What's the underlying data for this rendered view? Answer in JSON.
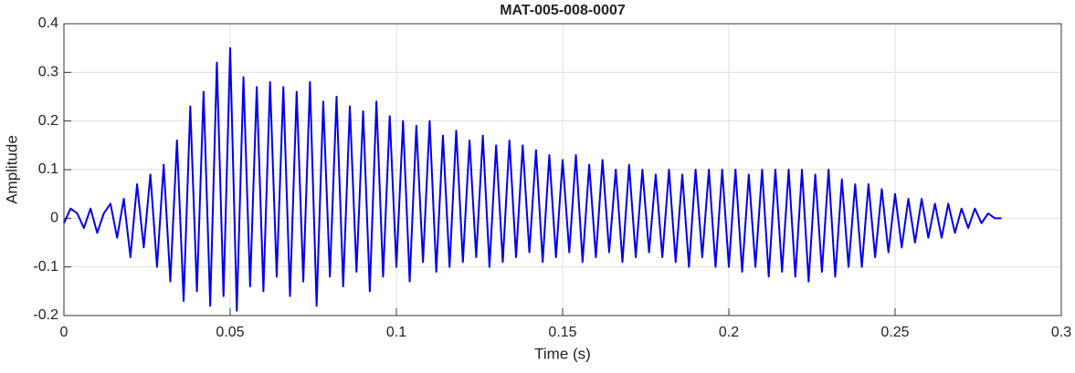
{
  "chart_data": {
    "type": "line",
    "title": "MAT-005-008-0007",
    "xlabel": "Time (s)",
    "ylabel": "Amplitude",
    "x": [
      0,
      0.002,
      0.004,
      0.006,
      0.008,
      0.01,
      0.012,
      0.014,
      0.016,
      0.018,
      0.02,
      0.022,
      0.024,
      0.026,
      0.028,
      0.03,
      0.032,
      0.034,
      0.036,
      0.038,
      0.04,
      0.042,
      0.044,
      0.046,
      0.048,
      0.05,
      0.052,
      0.054,
      0.056,
      0.058,
      0.06,
      0.062,
      0.064,
      0.066,
      0.068,
      0.07,
      0.072,
      0.074,
      0.076,
      0.078,
      0.08,
      0.082,
      0.084,
      0.086,
      0.088,
      0.09,
      0.092,
      0.094,
      0.096,
      0.098,
      0.1,
      0.102,
      0.104,
      0.106,
      0.108,
      0.11,
      0.112,
      0.114,
      0.116,
      0.118,
      0.12,
      0.122,
      0.124,
      0.126,
      0.128,
      0.13,
      0.132,
      0.134,
      0.136,
      0.138,
      0.14,
      0.142,
      0.144,
      0.146,
      0.148,
      0.15,
      0.152,
      0.154,
      0.156,
      0.158,
      0.16,
      0.162,
      0.164,
      0.166,
      0.168,
      0.17,
      0.172,
      0.174,
      0.176,
      0.178,
      0.18,
      0.182,
      0.184,
      0.186,
      0.188,
      0.19,
      0.192,
      0.194,
      0.196,
      0.198,
      0.2,
      0.202,
      0.204,
      0.206,
      0.208,
      0.21,
      0.212,
      0.214,
      0.216,
      0.218,
      0.22,
      0.222,
      0.224,
      0.226,
      0.228,
      0.23,
      0.232,
      0.234,
      0.236,
      0.238,
      0.24,
      0.242,
      0.244,
      0.246,
      0.248,
      0.25,
      0.252,
      0.254,
      0.256,
      0.258,
      0.26,
      0.262,
      0.264,
      0.266,
      0.268,
      0.27,
      0.272,
      0.274,
      0.276,
      0.278,
      0.28,
      0.282
    ],
    "series": [
      {
        "name": "Amplitude",
        "color": "#0000ee",
        "values": [
          -0.01,
          0.02,
          0.01,
          -0.02,
          0.02,
          -0.03,
          0.01,
          0.03,
          -0.04,
          0.04,
          -0.08,
          0.07,
          -0.06,
          0.09,
          -0.1,
          0.11,
          -0.13,
          0.16,
          -0.17,
          0.23,
          -0.15,
          0.26,
          -0.18,
          0.32,
          -0.16,
          0.35,
          -0.19,
          0.29,
          -0.14,
          0.27,
          -0.15,
          0.28,
          -0.12,
          0.27,
          -0.16,
          0.26,
          -0.13,
          0.28,
          -0.18,
          0.24,
          -0.12,
          0.25,
          -0.14,
          0.23,
          -0.11,
          0.22,
          -0.15,
          0.24,
          -0.12,
          0.21,
          -0.1,
          0.2,
          -0.13,
          0.19,
          -0.09,
          0.2,
          -0.11,
          0.17,
          -0.1,
          0.18,
          -0.09,
          0.16,
          -0.08,
          0.17,
          -0.1,
          0.15,
          -0.09,
          0.16,
          -0.08,
          0.15,
          -0.07,
          0.14,
          -0.09,
          0.13,
          -0.08,
          0.12,
          -0.07,
          0.13,
          -0.09,
          0.11,
          -0.08,
          0.12,
          -0.07,
          0.1,
          -0.09,
          0.11,
          -0.08,
          0.1,
          -0.07,
          0.09,
          -0.08,
          0.1,
          -0.09,
          0.09,
          -0.1,
          0.1,
          -0.08,
          0.1,
          -0.1,
          0.1,
          -0.1,
          0.1,
          -0.11,
          0.09,
          -0.1,
          0.1,
          -0.12,
          0.1,
          -0.11,
          0.1,
          -0.12,
          0.1,
          -0.13,
          0.09,
          -0.11,
          0.1,
          -0.12,
          0.08,
          -0.1,
          0.07,
          -0.1,
          0.07,
          -0.08,
          0.06,
          -0.07,
          0.05,
          -0.06,
          0.04,
          -0.05,
          0.04,
          -0.04,
          0.03,
          -0.04,
          0.03,
          -0.03,
          0.02,
          -0.02,
          0.02,
          -0.01,
          0.01,
          0,
          0
        ]
      }
    ],
    "xlim": [
      0,
      0.3
    ],
    "xticks": [
      0,
      0.05,
      0.1,
      0.15,
      0.2,
      0.25,
      0.3
    ],
    "ylim": [
      -0.2,
      0.4
    ],
    "yticks": [
      -0.2,
      -0.1,
      0,
      0.1,
      0.2,
      0.3,
      0.4
    ],
    "grid": true
  }
}
